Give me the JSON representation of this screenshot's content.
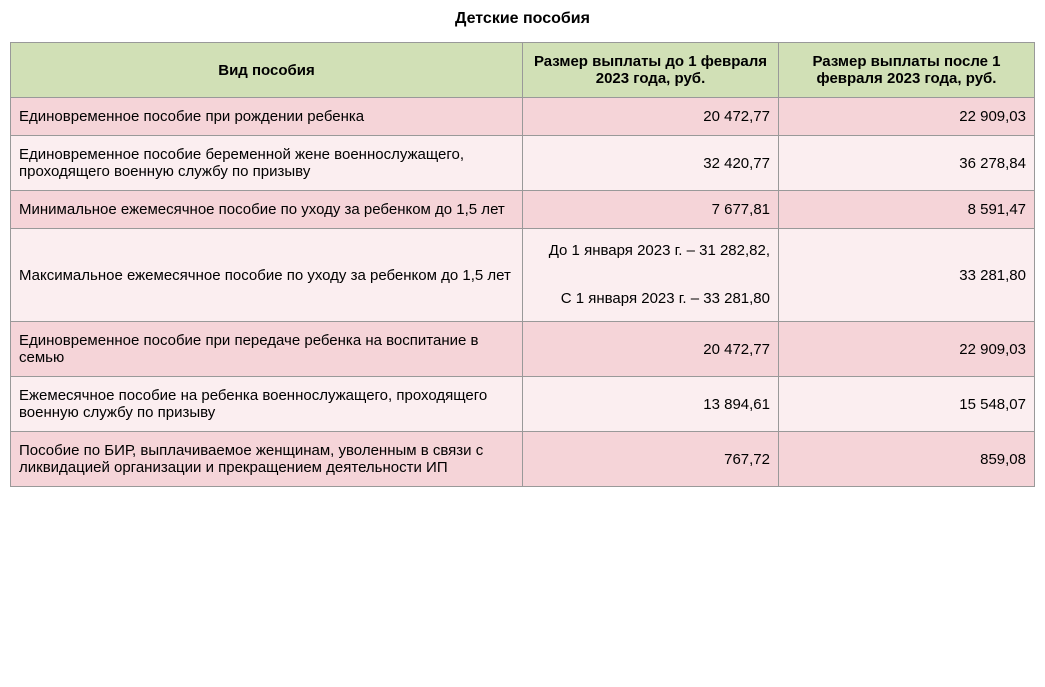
{
  "title": "Детские пособия",
  "table": {
    "type": "table",
    "header_bg": "#d1e0b6",
    "row_bg_a": "#f5d4d8",
    "row_bg_b": "#fbeef0",
    "border_color": "#999999",
    "text_color": "#000000",
    "fontsize": 15,
    "columns": [
      {
        "key": "type",
        "label": "Вид пособия",
        "width_pct": 50,
        "align": "center"
      },
      {
        "key": "before",
        "label": "Размер выплаты до 1 февраля 2023 года, руб.",
        "width_pct": 25,
        "align": "center"
      },
      {
        "key": "after",
        "label": "Размер выплаты после 1 февраля 2023 года, руб.",
        "width_pct": 25,
        "align": "center"
      }
    ],
    "rows": [
      {
        "type": "Единовременное пособие при рождении ребенка",
        "before": "20 472,77",
        "after": "22 909,03"
      },
      {
        "type": "Единовременное пособие беременной жене военнослужащего, проходящего военную службу по призыву",
        "before": "32 420,77",
        "after": "36 278,84"
      },
      {
        "type": "Минимальное ежемесячное пособие по уходу за ребенком до 1,5 лет",
        "before": "7 677,81",
        "after": "8 591,47"
      },
      {
        "type": "Максимальное ежемесячное пособие по уходу за ребенком до 1,5 лет",
        "before": "До 1 января 2023 г. – 31 282,82,\n\nС 1 января 2023 г. – 33 281,80",
        "after": "33 281,80"
      },
      {
        "type": "Единовременное пособие при передаче ребенка на воспитание в семью",
        "before": "20 472,77",
        "after": "22 909,03"
      },
      {
        "type": "Ежемесячное пособие на ребенка военнослужащего, проходящего военную службу по призыву",
        "before": "13 894,61",
        "after": "15 548,07"
      },
      {
        "type": "Пособие по БИР, выплачиваемое женщинам, уволенным в связи с ликвидацией организации и прекращением деятельности ИП",
        "before": "767,72",
        "after": "859,08"
      }
    ]
  }
}
